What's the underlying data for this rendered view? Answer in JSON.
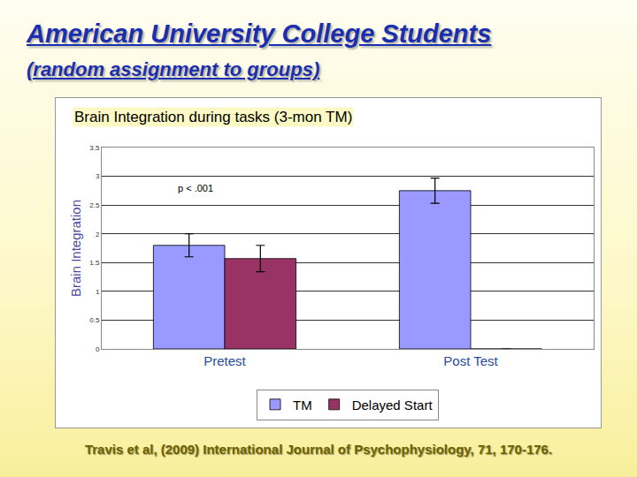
{
  "header": {
    "title": "American University College Students",
    "subtitle": "(random assignment to groups)"
  },
  "chart_data": {
    "type": "bar",
    "title": "Brain Integration during tasks (3-mon TM)",
    "y_label": "Brain Integration",
    "categories": [
      "Pretest",
      "Post Test"
    ],
    "series": [
      {
        "name": "TM",
        "color": "#9999ff",
        "values": [
          1.8,
          2.75
        ],
        "errors": [
          0.2,
          0.22
        ]
      },
      {
        "name": "Delayed Start",
        "color": "#993366",
        "values": [
          1.57,
          0
        ],
        "errors": [
          0.23,
          null
        ]
      }
    ],
    "ylim": [
      0,
      3.5
    ],
    "yticks": [
      0,
      0.5,
      1,
      1.5,
      2,
      2.5,
      3,
      3.5
    ],
    "grid": true,
    "legend": "bottom",
    "annotations": [
      "p < .001"
    ]
  },
  "footer": {
    "citation": "Travis et al, (2009) International Journal of Psychophysiology, 71, 170-176."
  }
}
